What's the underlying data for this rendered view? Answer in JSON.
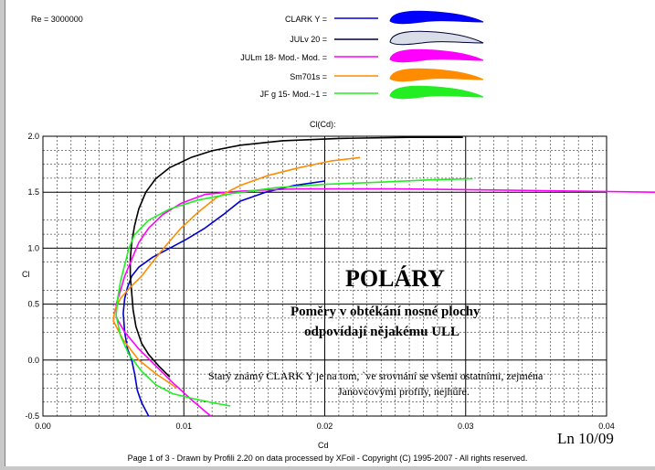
{
  "header": {
    "re_label": "Re = 3000000"
  },
  "legend": [
    {
      "label": "CLARK Y =",
      "color": "#0000dd",
      "fill": "#0000ff",
      "profile": "clark-y"
    },
    {
      "label": "JULv 20 =",
      "color": "#000033",
      "fill": "#d8dde8",
      "profile": "julv-20"
    },
    {
      "label": "JULm 18- Mod.- Mod. =",
      "color": "#ff00ff",
      "fill": "#ff00ff",
      "profile": "julm-18"
    },
    {
      "label": "Sm701s =",
      "color": "#ff8c00",
      "fill": "#ff8c00",
      "profile": "sm701s"
    },
    {
      "label": "JF g  15- Mod.~1 =",
      "color": "#22ee22",
      "fill": "#22ee22",
      "profile": "jfg-15"
    }
  ],
  "chart_data": {
    "type": "line",
    "title": "Cl(Cd):",
    "xlabel": "Cd",
    "ylabel": "Cl",
    "xlim": [
      0,
      0.04
    ],
    "ylim": [
      -0.5,
      2.0
    ],
    "x_ticks": [
      "0.00",
      "0.01",
      "0.02",
      "0.03",
      "0.04"
    ],
    "y_ticks": [
      "-0.5",
      "0.0",
      "0.5",
      "1.0",
      "1.5",
      "2.0"
    ],
    "grid": true,
    "series": [
      {
        "name": "CLARK Y",
        "color": "#0000cc",
        "points": [
          [
            0.0075,
            -0.5
          ],
          [
            0.007,
            -0.38
          ],
          [
            0.0067,
            -0.27
          ],
          [
            0.0065,
            -0.12
          ],
          [
            0.0063,
            0.0
          ],
          [
            0.006,
            0.1
          ],
          [
            0.0058,
            0.25
          ],
          [
            0.0057,
            0.42
          ],
          [
            0.0058,
            0.55
          ],
          [
            0.006,
            0.65
          ],
          [
            0.0063,
            0.75
          ],
          [
            0.0068,
            0.83
          ],
          [
            0.0078,
            0.92
          ],
          [
            0.009,
            1.0
          ],
          [
            0.0102,
            1.08
          ],
          [
            0.0115,
            1.18
          ],
          [
            0.0128,
            1.3
          ],
          [
            0.014,
            1.42
          ],
          [
            0.0158,
            1.5
          ],
          [
            0.0178,
            1.56
          ],
          [
            0.02,
            1.6
          ]
        ]
      },
      {
        "name": "JULv 20",
        "color": "#000000",
        "points": [
          [
            0.009,
            -0.15
          ],
          [
            0.0082,
            -0.05
          ],
          [
            0.0075,
            0.05
          ],
          [
            0.007,
            0.15
          ],
          [
            0.0066,
            0.3
          ],
          [
            0.0064,
            0.45
          ],
          [
            0.0063,
            0.6
          ],
          [
            0.0062,
            0.75
          ],
          [
            0.0062,
            0.9
          ],
          [
            0.0063,
            1.05
          ],
          [
            0.0065,
            1.2
          ],
          [
            0.0068,
            1.35
          ],
          [
            0.0073,
            1.5
          ],
          [
            0.008,
            1.62
          ],
          [
            0.009,
            1.72
          ],
          [
            0.0105,
            1.81
          ],
          [
            0.012,
            1.87
          ],
          [
            0.014,
            1.92
          ],
          [
            0.017,
            1.96
          ],
          [
            0.021,
            1.98
          ],
          [
            0.026,
            1.99
          ],
          [
            0.0298,
            1.99
          ]
        ]
      },
      {
        "name": "JULm 18- Mod.- Mod.",
        "color": "#ff00ff",
        "points": [
          [
            0.0119,
            -0.5
          ],
          [
            0.0105,
            -0.35
          ],
          [
            0.0092,
            -0.2
          ],
          [
            0.008,
            -0.05
          ],
          [
            0.0068,
            0.1
          ],
          [
            0.0058,
            0.25
          ],
          [
            0.0052,
            0.38
          ],
          [
            0.0052,
            0.5
          ],
          [
            0.0055,
            0.62
          ],
          [
            0.0058,
            0.75
          ],
          [
            0.0063,
            0.9
          ],
          [
            0.0068,
            1.05
          ],
          [
            0.0075,
            1.18
          ],
          [
            0.0085,
            1.3
          ],
          [
            0.0098,
            1.4
          ],
          [
            0.0115,
            1.48
          ],
          [
            0.014,
            1.51
          ],
          [
            0.018,
            1.53
          ],
          [
            0.025,
            1.53
          ],
          [
            0.032,
            1.52
          ],
          [
            0.038,
            1.51
          ],
          [
            0.0435,
            1.5
          ]
        ]
      },
      {
        "name": "Sm701s",
        "color": "#ff8c00",
        "points": [
          [
            0.0095,
            -0.25
          ],
          [
            0.008,
            -0.12
          ],
          [
            0.0068,
            0.0
          ],
          [
            0.0057,
            0.18
          ],
          [
            0.005,
            0.35
          ],
          [
            0.0051,
            0.45
          ],
          [
            0.0055,
            0.55
          ],
          [
            0.0062,
            0.65
          ],
          [
            0.007,
            0.75
          ],
          [
            0.0078,
            0.88
          ],
          [
            0.0087,
            1.02
          ],
          [
            0.0098,
            1.18
          ],
          [
            0.011,
            1.32
          ],
          [
            0.0123,
            1.45
          ],
          [
            0.014,
            1.56
          ],
          [
            0.016,
            1.65
          ],
          [
            0.0182,
            1.72
          ],
          [
            0.0205,
            1.78
          ],
          [
            0.0225,
            1.81
          ]
        ]
      },
      {
        "name": "JF g  15- Mod.~1",
        "color": "#22ee22",
        "points": [
          [
            0.0133,
            -0.41
          ],
          [
            0.012,
            -0.38
          ],
          [
            0.0105,
            -0.34
          ],
          [
            0.0092,
            -0.3
          ],
          [
            0.008,
            -0.22
          ],
          [
            0.007,
            -0.1
          ],
          [
            0.0061,
            0.05
          ],
          [
            0.0055,
            0.22
          ],
          [
            0.0052,
            0.4
          ],
          [
            0.0053,
            0.55
          ],
          [
            0.0055,
            0.7
          ],
          [
            0.0058,
            0.85
          ],
          [
            0.0061,
            1.0
          ],
          [
            0.0065,
            1.12
          ],
          [
            0.0075,
            1.25
          ],
          [
            0.009,
            1.35
          ],
          [
            0.011,
            1.43
          ],
          [
            0.0135,
            1.49
          ],
          [
            0.0165,
            1.54
          ],
          [
            0.02,
            1.57
          ],
          [
            0.024,
            1.59
          ],
          [
            0.0275,
            1.61
          ],
          [
            0.0305,
            1.62
          ]
        ]
      }
    ]
  },
  "annotation": {
    "heading": "POLÁRY",
    "line1": "Poměry v obtékání nosné plochy",
    "line2": "odpovídají nějakému ULL",
    "note1": "Starý známý CLARK Y je na tom, `ve srovnání se všemi ostatními, zejména",
    "note2": "Janovcovými profily, nejhůře.",
    "tag": "Ln 10/09"
  },
  "footer": {
    "text": "Page 1 of 3   -   Drawn by Profili 2.20 on data processed by  XFoil - Copyright (C) 1995-2007 - All rights reserved."
  }
}
